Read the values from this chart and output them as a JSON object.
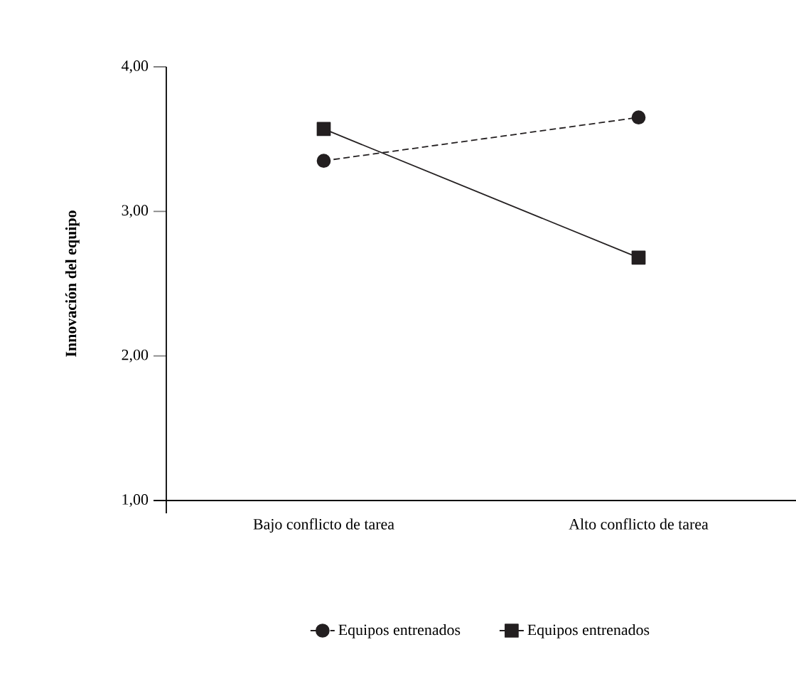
{
  "chart_data": {
    "type": "line",
    "ylabel": "Innovación del equipo",
    "categories": [
      "Bajo conflicto de tarea",
      "Alto conflicto de tarea"
    ],
    "series": [
      {
        "name": "Equipos entrenados",
        "color": "#231f20",
        "values": [
          3.35,
          3.65
        ],
        "marker": "circle",
        "line_style": "dashed"
      },
      {
        "name": "Equipos entrenados",
        "color": "#231f20",
        "values": [
          3.57,
          2.68
        ],
        "marker": "square",
        "line_style": "solid"
      }
    ],
    "ylim": [
      1,
      4
    ],
    "yticks": [
      {
        "value": 1,
        "label": "1,00"
      },
      {
        "value": 2,
        "label": "2,00"
      },
      {
        "value": 3,
        "label": "3,00"
      },
      {
        "value": 4,
        "label": "4,00"
      }
    ],
    "grid": false,
    "legend": "bottom"
  }
}
